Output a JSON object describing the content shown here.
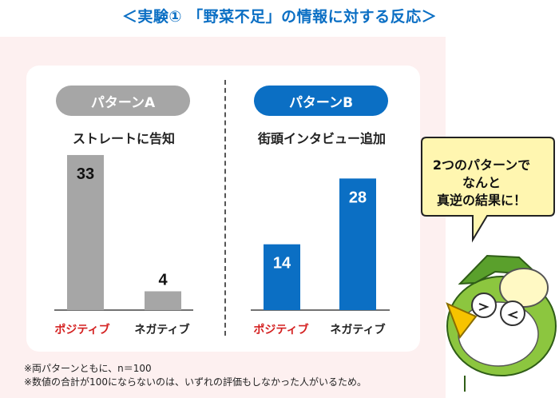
{
  "title": "＜実験① 「野菜不足」の情報に対する反応＞",
  "panels": [
    {
      "label": "パターンA",
      "subtitle": "ストレートに告知"
    },
    {
      "label": "パターンB",
      "subtitle": "街頭インタビュー追加"
    }
  ],
  "chart_data": [
    {
      "type": "bar",
      "title": "パターンA",
      "subtitle": "ストレートに告知",
      "categories": [
        "ポジティブ",
        "ネガティブ"
      ],
      "values": [
        33,
        4
      ],
      "colors": [
        "#a6a6a6",
        "#a6a6a6"
      ]
    },
    {
      "type": "bar",
      "title": "パターンB",
      "subtitle": "街頭インタビュー追加",
      "categories": [
        "ポジティブ",
        "ネガティブ"
      ],
      "values": [
        14,
        28
      ],
      "colors": [
        "#0b6fc4",
        "#0b6fc4"
      ]
    }
  ],
  "callout": {
    "line1": "2つのパターンで",
    "line2": "なんと",
    "line3": "真逆の結果に！"
  },
  "notes": [
    "※両パターンともに、n＝100",
    "※数値の合計が100にならないのは、いずれの評価もしなかった人がいるため。"
  ],
  "colors": {
    "accent": "#0b6fc4",
    "gray": "#a6a6a6",
    "positive_label": "#d42020"
  }
}
